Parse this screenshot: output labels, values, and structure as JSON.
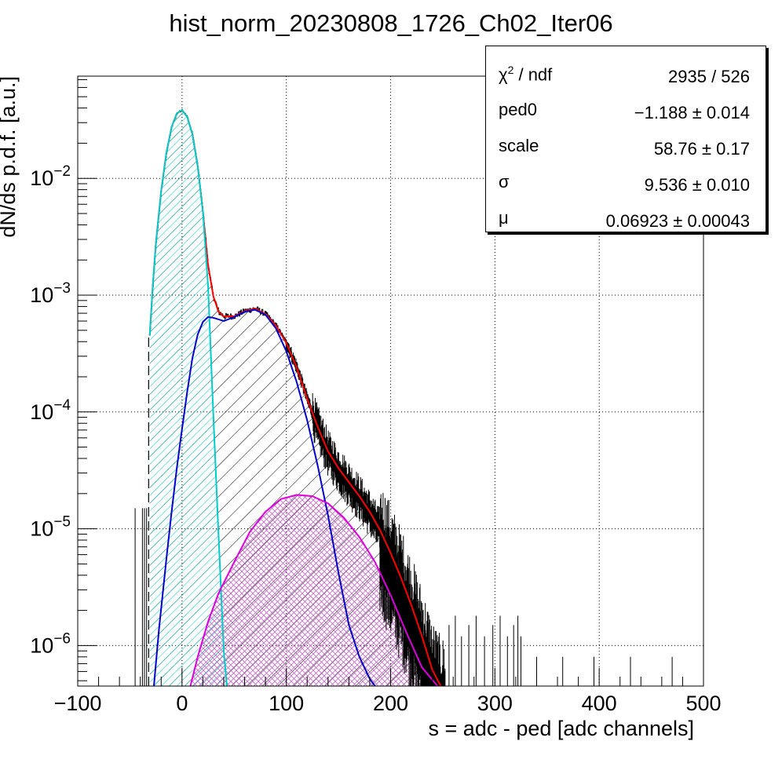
{
  "chart_data": {
    "type": "histogram_with_fits",
    "title": "hist_norm_20230808_1726_Ch02_Iter06",
    "xlabel": "s = adc - ped [adc channels]",
    "ylabel": "dN/ds p.d.f. [a.u.]",
    "xlim": [
      -100,
      500
    ],
    "ylim": [
      4.5e-07,
      0.075
    ],
    "yscale": "log",
    "grid": true,
    "x_ticks": [
      {
        "value": -100,
        "label": "−100"
      },
      {
        "value": 0,
        "label": "0"
      },
      {
        "value": 100,
        "label": "100"
      },
      {
        "value": 200,
        "label": "200"
      },
      {
        "value": 300,
        "label": "300"
      },
      {
        "value": 400,
        "label": "400"
      },
      {
        "value": 500,
        "label": "500"
      }
    ],
    "y_ticks": [
      {
        "value": 1e-06,
        "base": "10",
        "exp": "−6"
      },
      {
        "value": 1e-05,
        "base": "10",
        "exp": "−5"
      },
      {
        "value": 0.0001,
        "base": "10",
        "exp": "−4"
      },
      {
        "value": 0.001,
        "base": "10",
        "exp": "−3"
      },
      {
        "value": 0.01,
        "base": "10",
        "exp": "−2"
      }
    ],
    "histogram": {
      "pedestal_mean": -1.188,
      "pedestal_sigma": 9.536,
      "mu": 0.06923,
      "pedestal_peak": 0.039,
      "x_start": -31,
      "tail_last_x": 325
    },
    "series": [
      {
        "role": "total",
        "color": "#ff0000",
        "x": [
          -31,
          -28,
          -25,
          -20,
          -15,
          -10,
          -5,
          0,
          5,
          10,
          15,
          20,
          25,
          30,
          35,
          40,
          50,
          60,
          70,
          80,
          90,
          100,
          110,
          120,
          130,
          140,
          150,
          160,
          170,
          180,
          190,
          200,
          210,
          220,
          230,
          240,
          248
        ],
        "y": [
          0.00045,
          0.0012,
          0.0028,
          0.0078,
          0.0165,
          0.0275,
          0.036,
          0.0385,
          0.0335,
          0.0238,
          0.0127,
          0.0052,
          0.0018,
          0.00098,
          0.00072,
          0.00066,
          0.00066,
          0.00073,
          0.00077,
          0.00069,
          0.00055,
          0.00039,
          0.00024,
          0.00013,
          7.5e-05,
          4.6e-05,
          3.3e-05,
          2.5e-05,
          1.9e-05,
          1.4e-05,
          9.7e-06,
          6.2e-06,
          3.8e-06,
          2.2e-06,
          1.2e-06,
          6.2e-07,
          4.5e-07
        ]
      },
      {
        "role": "pedestal",
        "color": "#00cccc",
        "x": [
          -31,
          -28,
          -25,
          -20,
          -15,
          -10,
          -5,
          0,
          5,
          10,
          15,
          20,
          25,
          30,
          35,
          40,
          43
        ],
        "y": [
          0.00045,
          0.0012,
          0.0028,
          0.0078,
          0.0165,
          0.0275,
          0.036,
          0.0385,
          0.0335,
          0.0238,
          0.0127,
          0.0052,
          0.0012,
          9.5e-05,
          9e-06,
          9e-07,
          4.5e-07
        ]
      },
      {
        "role": "one-photoelectron",
        "color": "#0000cc",
        "x": [
          -27,
          -22,
          -15,
          -10,
          -5,
          0,
          5,
          10,
          15,
          20,
          25,
          30,
          40,
          50,
          60,
          70,
          80,
          90,
          100,
          110,
          120,
          130,
          140,
          150,
          160,
          170,
          180,
          185
        ],
        "y": [
          4.5e-07,
          1.4e-06,
          5.5e-06,
          1.4e-05,
          3.3e-05,
          7.1e-05,
          0.00015,
          0.00029,
          0.00046,
          0.00059,
          0.00065,
          0.00064,
          0.0006,
          0.00065,
          0.00072,
          0.00075,
          0.00068,
          0.00052,
          0.00033,
          0.00018,
          8.5e-05,
          3.5e-05,
          1.3e-05,
          4.2e-06,
          1.5e-06,
          8e-07,
          5.2e-07,
          4.5e-07
        ]
      },
      {
        "role": "two-photoelectron",
        "color": "#dd00dd",
        "x": [
          8,
          15,
          25,
          35,
          50,
          65,
          80,
          95,
          110,
          125,
          140,
          155,
          170,
          185,
          200,
          215,
          230,
          245
        ],
        "y": [
          4.5e-07,
          8e-07,
          1.6e-06,
          2.8e-06,
          5.2e-06,
          9.4e-06,
          1.4e-05,
          1.8e-05,
          1.95e-05,
          1.9e-05,
          1.65e-05,
          1.25e-05,
          8.5e-06,
          5.2e-06,
          2.7e-06,
          1.3e-06,
          6.5e-07,
          4.5e-07
        ]
      }
    ]
  },
  "stats": {
    "rows": [
      {
        "name_base": "χ",
        "name_sup": "2",
        "name_rest": " / ndf",
        "value": "2935 / 526"
      },
      {
        "name_base": "ped0",
        "name_sup": "",
        "name_rest": "",
        "value": "−1.188 ± 0.014"
      },
      {
        "name_base": "scale",
        "name_sup": "",
        "name_rest": "",
        "value": "58.76 ± 0.17"
      },
      {
        "name_base": "σ",
        "name_sup": "",
        "name_rest": "",
        "value": "9.536 ± 0.010"
      },
      {
        "name_base": "μ",
        "name_sup": "",
        "name_rest": "",
        "value": "0.06923 ± 0.00043"
      }
    ]
  }
}
